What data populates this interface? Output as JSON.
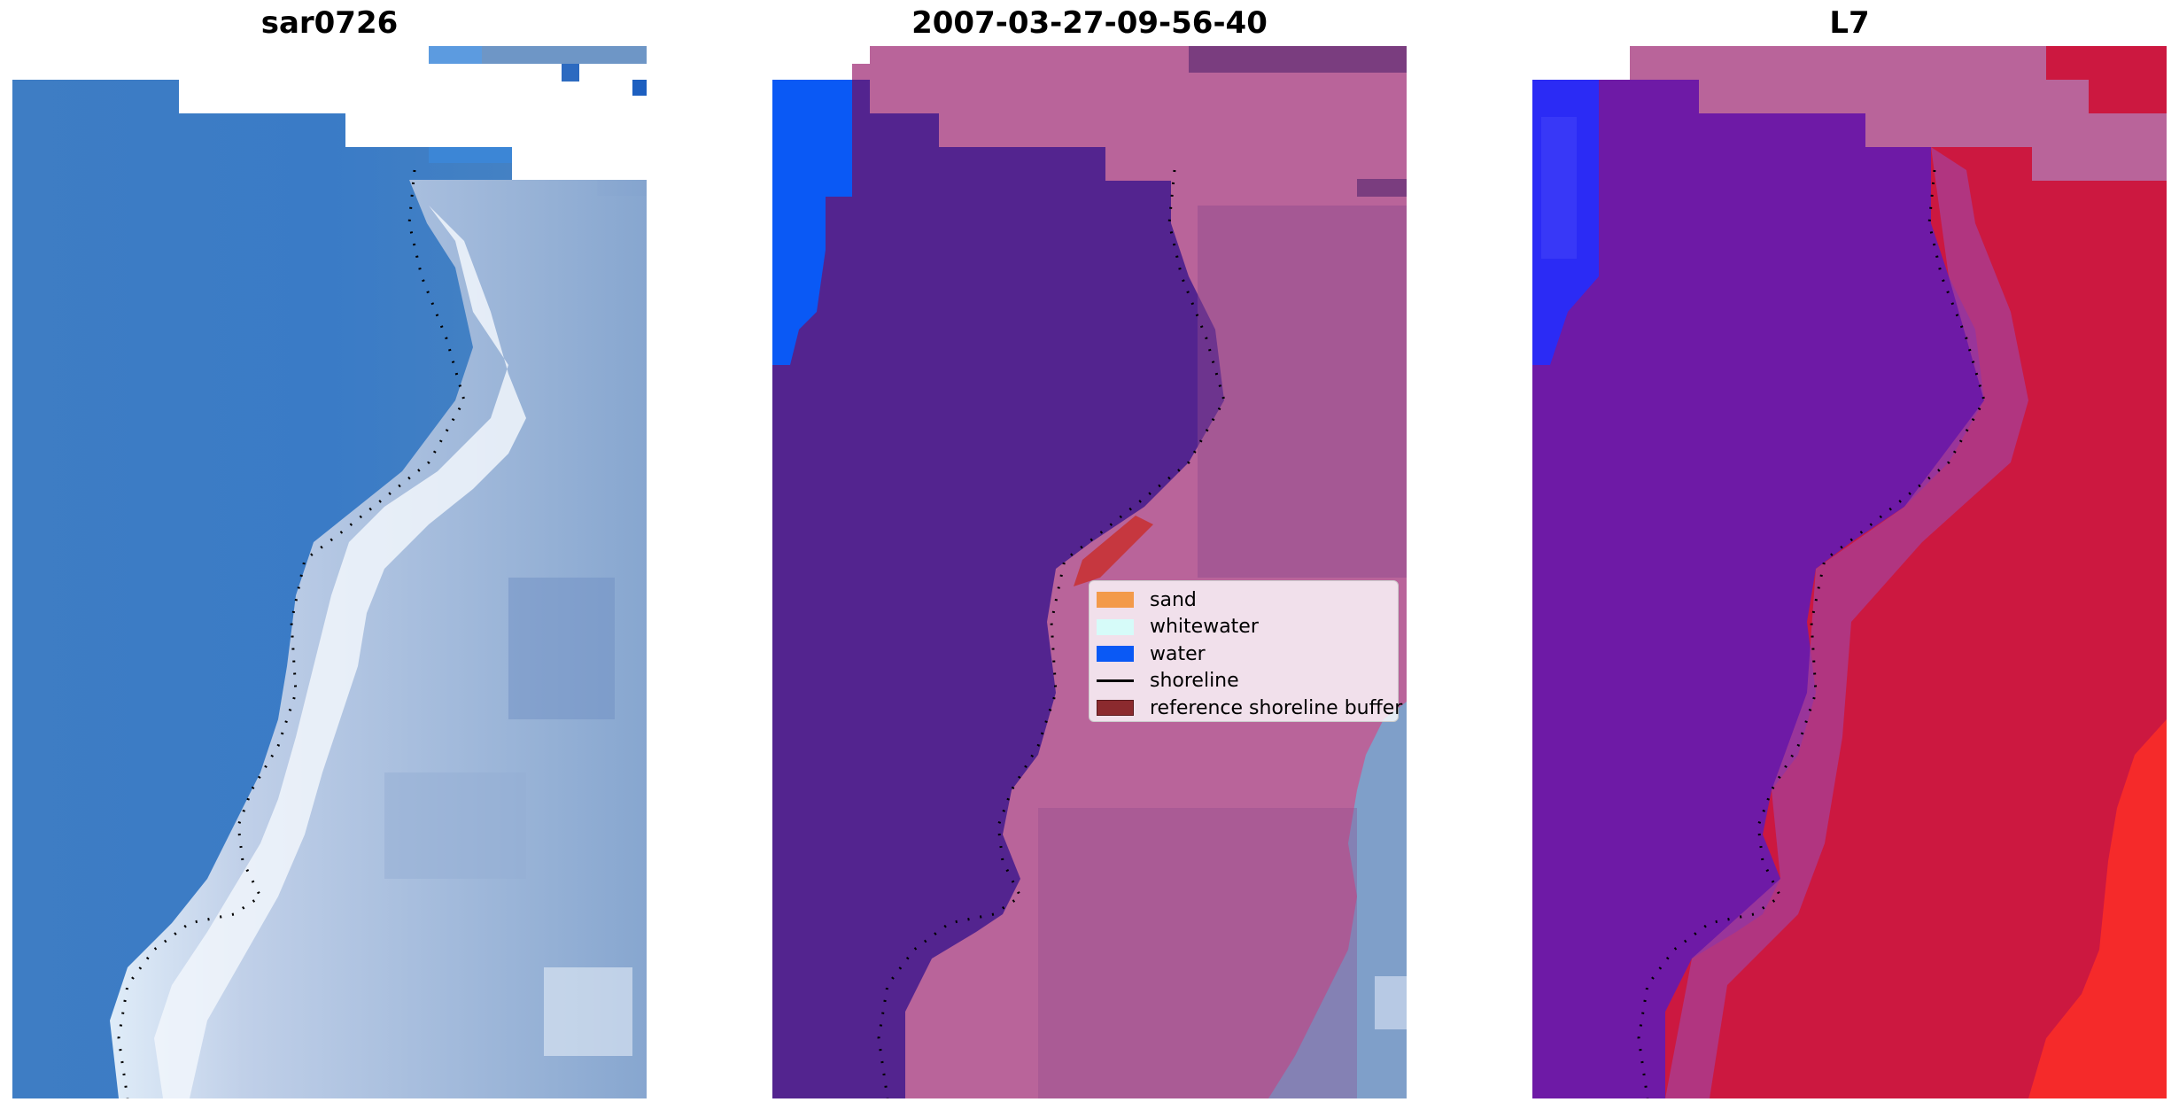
{
  "panels": [
    {
      "title": "sar0726"
    },
    {
      "title": "2007-03-27-09-56-40"
    },
    {
      "title": "L7"
    }
  ],
  "legend": {
    "items": [
      {
        "label": "sand",
        "color": "#f39a4a",
        "kind": "patch"
      },
      {
        "label": "whitewater",
        "color": "#d6fbf9",
        "kind": "patch"
      },
      {
        "label": "water",
        "color": "#0a59f5",
        "kind": "patch"
      },
      {
        "label": "shoreline",
        "color": "#000000",
        "kind": "line"
      },
      {
        "label": "reference shoreline buffer",
        "color": "#8b2a2e",
        "kind": "patch"
      }
    ]
  },
  "colors": {
    "rgb_water": "#3f7fc6",
    "rgb_surf": "#c9d6ea",
    "cls_land": "#53248f",
    "cls_sea": "#b9649a",
    "cls_water": "#0a59f5",
    "cls_buffer": "#c6373f",
    "mndwi_low": "#7a1fae",
    "mndwi_high": "#cc1840"
  }
}
